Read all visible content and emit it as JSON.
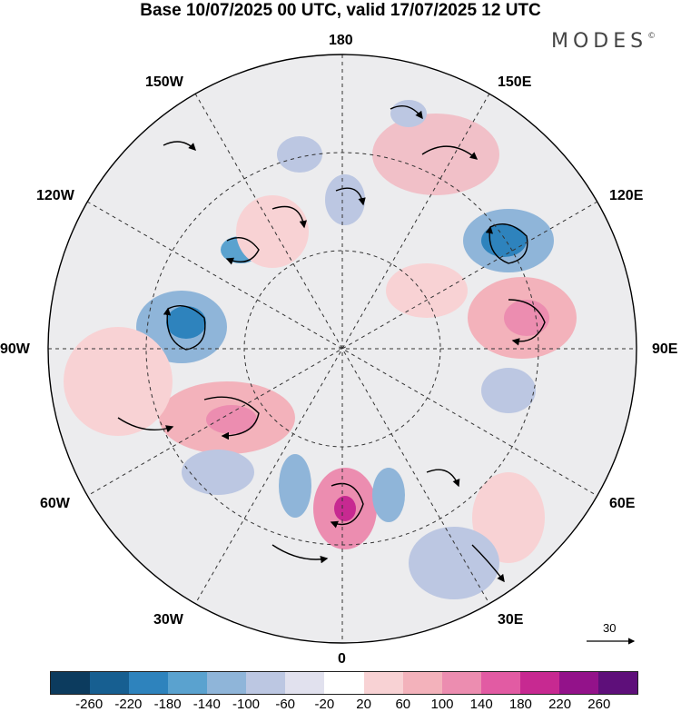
{
  "title": "Base 10/07/2025 00 UTC, valid 17/07/2025 12 UTC",
  "brand": "MODES",
  "brand_mark": "©",
  "longitude_labels": {
    "top": "180",
    "bottom": "0",
    "left": "90W",
    "right": "90E",
    "w150": "150W",
    "w120": "120W",
    "w60": "60W",
    "w30": "30W",
    "e150": "150E",
    "e120": "120E",
    "e60": "60E",
    "e30": "30E"
  },
  "reference_vector": {
    "label": "30",
    "icon": "arrow-right-icon"
  },
  "colorbar": {
    "colors": [
      "#0c3b5e",
      "#175f91",
      "#2e83bd",
      "#5aa2cf",
      "#8fb5d9",
      "#bcc7e2",
      "#e1e1ee",
      "#ffffff",
      "#f8d2d4",
      "#f3b2bb",
      "#ec8db0",
      "#e25ba3",
      "#c72991",
      "#93128a",
      "#5e0f7a"
    ],
    "ticks": [
      "-260",
      "-220",
      "-180",
      "-140",
      "-100",
      "-60",
      "-20",
      "20",
      "60",
      "100",
      "140",
      "180",
      "220",
      "260"
    ]
  }
}
